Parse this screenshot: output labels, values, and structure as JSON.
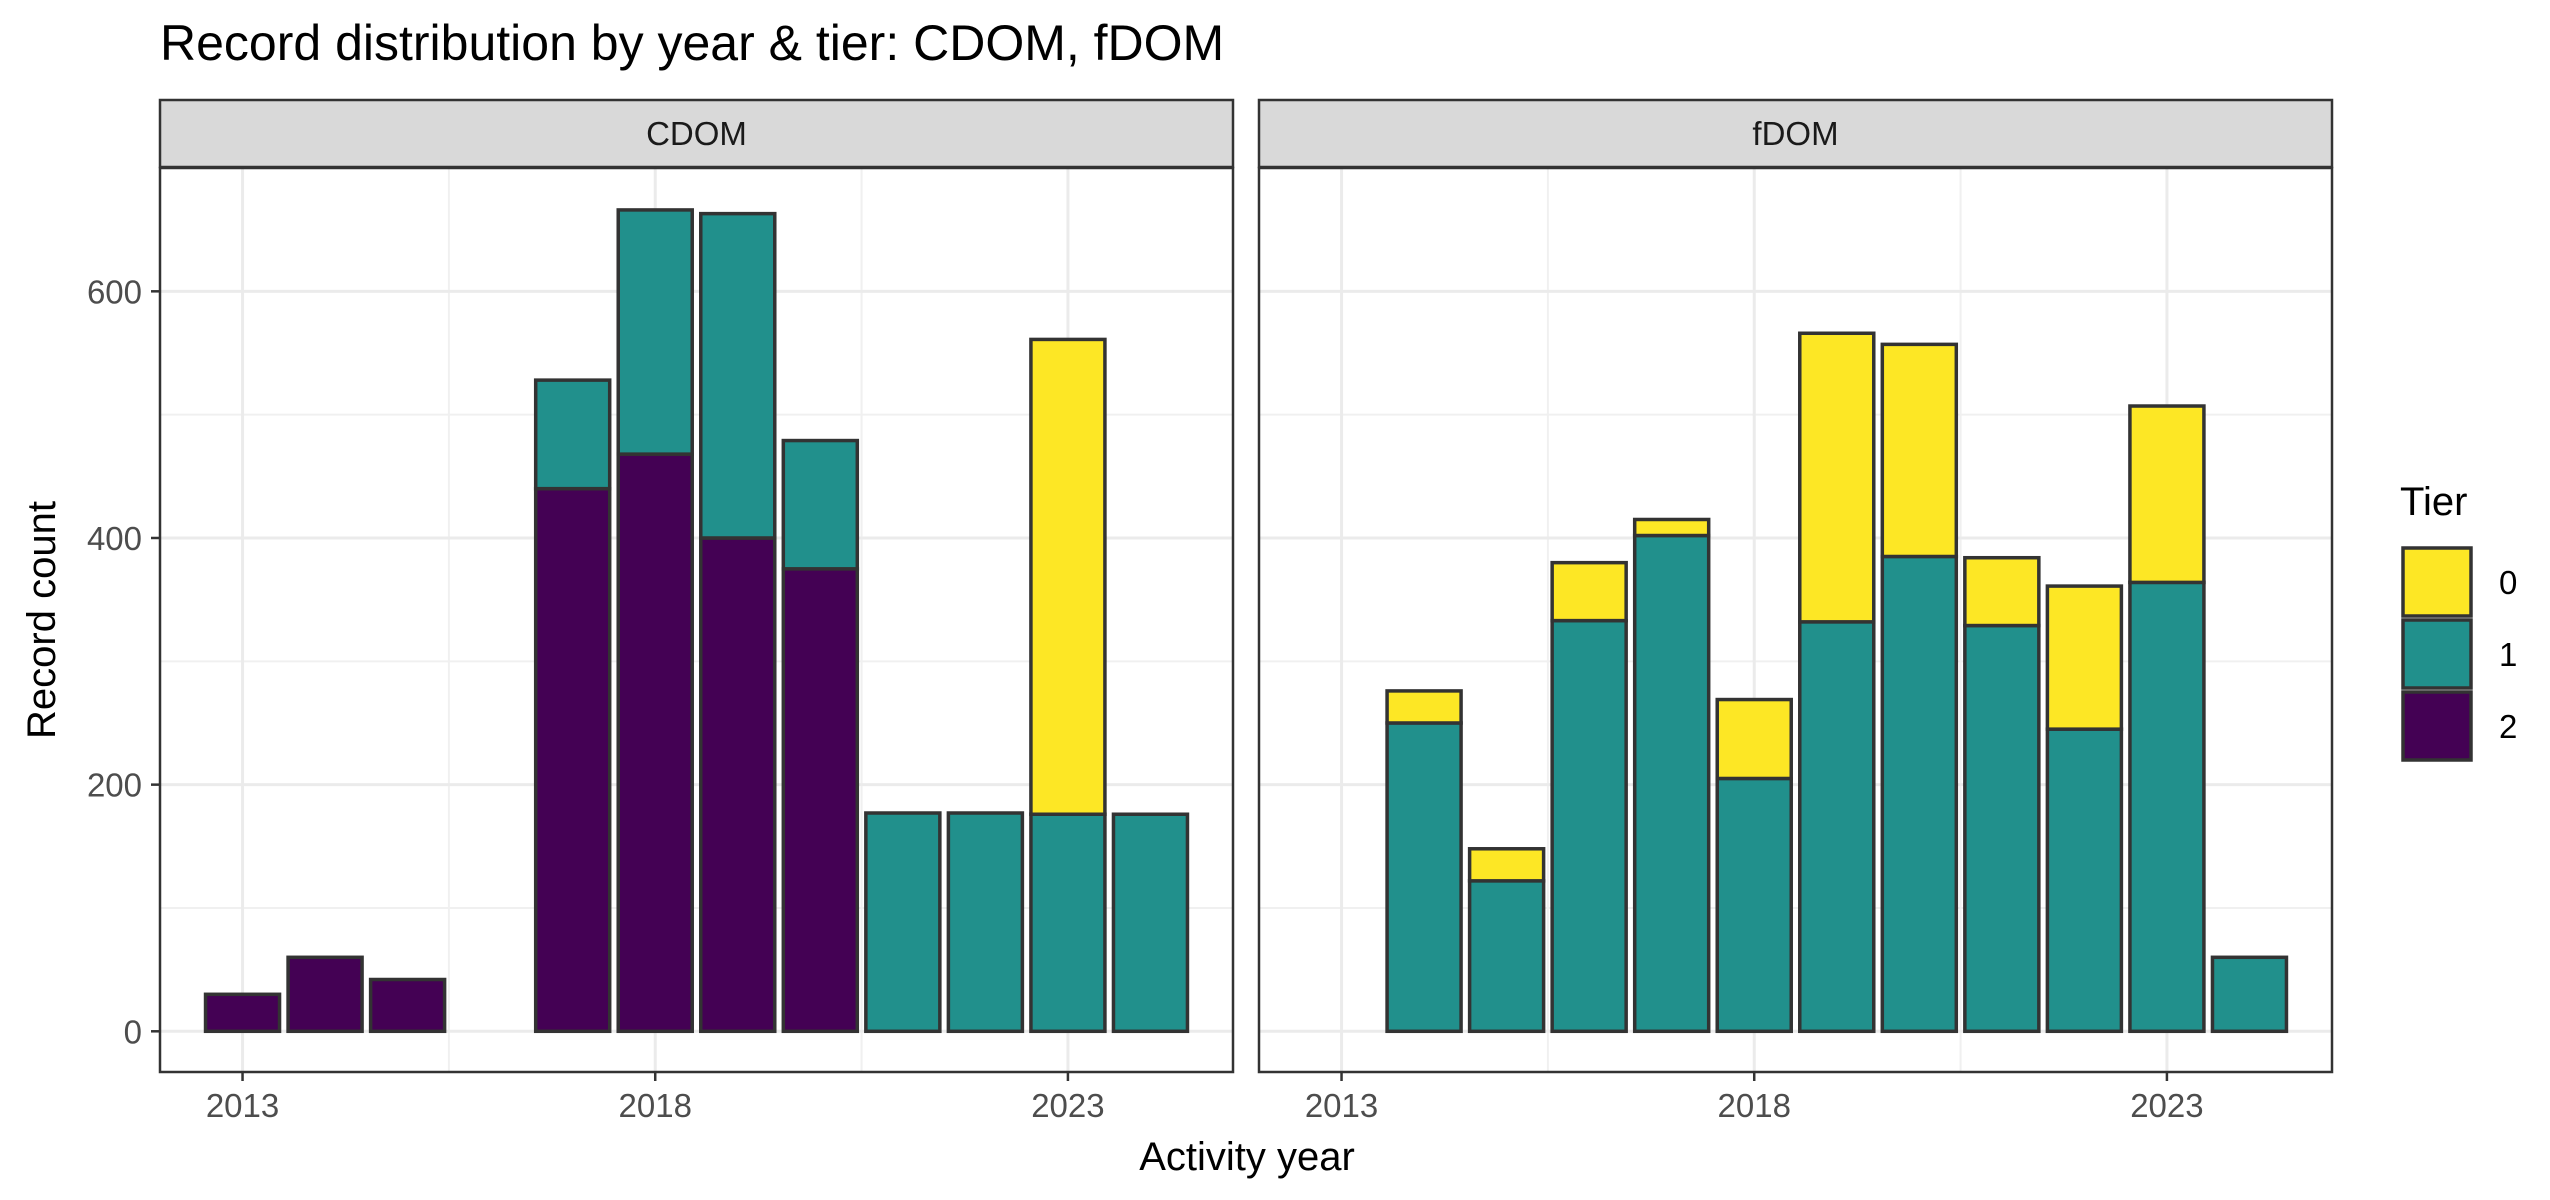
{
  "chart_data": {
    "type": "bar",
    "stacked": true,
    "title": "Record distribution by year & tier: CDOM, fDOM",
    "xlabel": "Activity year",
    "ylabel": "Record count",
    "x_ticks": [
      2013,
      2018,
      2023
    ],
    "y_ticks": [
      0,
      200,
      400,
      600
    ],
    "xlim": [
      2012,
      2025
    ],
    "ylim": [
      -33,
      700
    ],
    "grid": true,
    "legend": {
      "title": "Tier",
      "position": "right",
      "entries": [
        {
          "label": "0",
          "color": "#FDE725"
        },
        {
          "label": "1",
          "color": "#21908C"
        },
        {
          "label": "2",
          "color": "#440154"
        }
      ]
    },
    "panels": [
      {
        "name": "CDOM",
        "years": [
          2013,
          2014,
          2015,
          2017,
          2018,
          2019,
          2020,
          2021,
          2022,
          2023,
          2024
        ],
        "series": [
          {
            "tier": "2",
            "values": [
              30,
              60,
              42,
              440,
              468,
              400,
              375,
              0,
              0,
              0,
              0
            ]
          },
          {
            "tier": "1",
            "values": [
              0,
              0,
              0,
              88,
              198,
              263,
              104,
              177,
              177,
              176,
              176
            ]
          },
          {
            "tier": "0",
            "values": [
              0,
              0,
              0,
              0,
              0,
              0,
              0,
              0,
              0,
              385,
              0
            ]
          }
        ]
      },
      {
        "name": "fDOM",
        "years": [
          2014,
          2015,
          2016,
          2017,
          2018,
          2019,
          2020,
          2021,
          2022,
          2023,
          2024
        ],
        "series": [
          {
            "tier": "2",
            "values": [
              0,
              0,
              0,
              0,
              0,
              0,
              0,
              0,
              0,
              0,
              0
            ]
          },
          {
            "tier": "1",
            "values": [
              250,
              122,
              333,
              402,
              205,
              332,
              385,
              329,
              245,
              364,
              60
            ]
          },
          {
            "tier": "0",
            "values": [
              26,
              26,
              47,
              13,
              64,
              234,
              172,
              55,
              116,
              143,
              0
            ]
          }
        ]
      }
    ]
  }
}
